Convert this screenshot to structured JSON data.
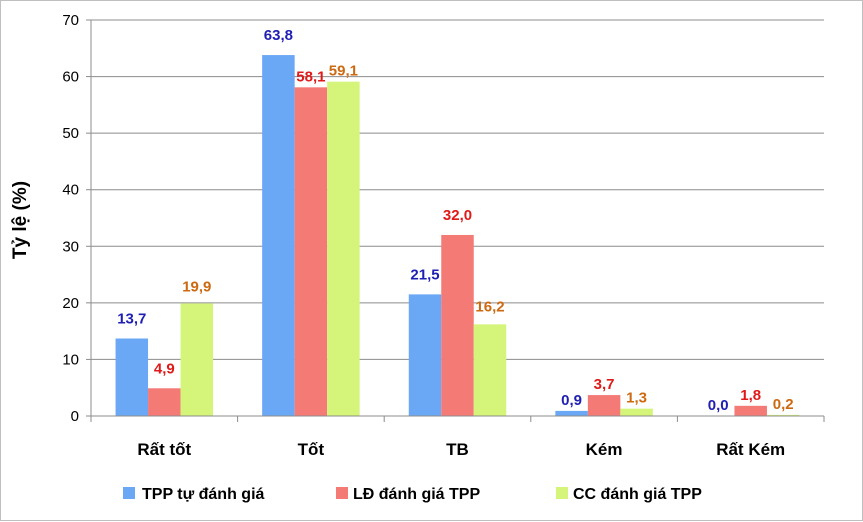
{
  "chart_data": {
    "type": "bar",
    "ylabel": "Tỷ lệ (%)",
    "xlabel": "",
    "ylim": [
      0,
      70
    ],
    "yticks": [
      "0",
      "10",
      "20",
      "30",
      "40",
      "50",
      "60",
      "70"
    ],
    "categories": [
      "Rất tốt",
      "Tốt",
      "TB",
      "Kém",
      "Rất Kém"
    ],
    "series": [
      {
        "name": "TPP tự đánh giá",
        "color": "#6aa7f5",
        "label_color": "#1f1fb4",
        "values": [
          13.7,
          63.8,
          21.5,
          0.9,
          0.0
        ],
        "labels": [
          "13,7",
          "63,8",
          "21,5",
          "0,9",
          "0,0"
        ]
      },
      {
        "name": "LĐ đánh giá TPP",
        "color": "#f47a76",
        "label_color": "#e01919",
        "values": [
          4.9,
          58.1,
          32.0,
          3.7,
          1.8
        ],
        "labels": [
          "4,9",
          "58,1",
          "32,0",
          "3,7",
          "1,8"
        ]
      },
      {
        "name": "CC đánh giá TPP",
        "color": "#d4f57a",
        "label_color": "#cc6a12",
        "values": [
          19.9,
          59.1,
          16.2,
          1.3,
          0.2
        ],
        "labels": [
          "19,9",
          "59,1",
          "16,2",
          "1,3",
          "0,2"
        ]
      }
    ],
    "grid": true,
    "legend_position": "bottom"
  }
}
